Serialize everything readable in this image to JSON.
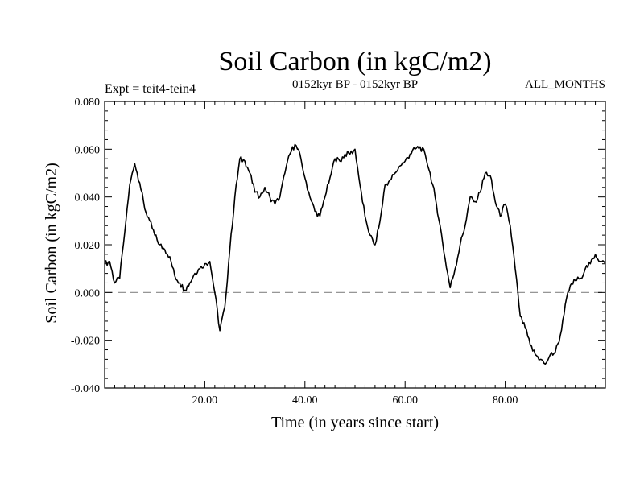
{
  "chart_data": {
    "type": "line",
    "title": "Soil Carbon (in kgC/m2)",
    "subtitle": "0152kyr BP - 0152kyr BP",
    "left_annotation": "Expt = teit4-tein4",
    "right_annotation": "ALL_MONTHS",
    "xlabel": "Time (in years since start)",
    "ylabel": "Soil Carbon (in kgC/m2)",
    "xlim": [
      0,
      100
    ],
    "ylim": [
      -0.04,
      0.08
    ],
    "xticks": [
      20,
      40,
      60,
      80
    ],
    "xtick_labels": [
      "20.00",
      "40.00",
      "60.00",
      "80.00"
    ],
    "yticks": [
      -0.04,
      -0.02,
      0.0,
      0.02,
      0.04,
      0.06,
      0.08
    ],
    "ytick_labels": [
      "-0.040",
      "-0.020",
      "0.000",
      "0.020",
      "0.040",
      "0.060",
      "0.080"
    ],
    "reference_line": {
      "y": 0.0,
      "style": "dashed",
      "color": "#888888"
    },
    "line_color": "#000000",
    "series": [
      {
        "name": "Soil Carbon",
        "x": [
          0,
          1,
          2,
          3,
          4,
          5,
          6,
          7,
          8,
          9,
          10,
          11,
          12,
          13,
          14,
          15,
          16,
          17,
          18,
          19,
          20,
          21,
          22,
          23,
          24,
          25,
          26,
          27,
          28,
          29,
          30,
          31,
          32,
          33,
          34,
          35,
          36,
          37,
          38,
          39,
          40,
          41,
          42,
          43,
          44,
          45,
          46,
          47,
          48,
          49,
          50,
          51,
          52,
          53,
          54,
          55,
          56,
          57,
          58,
          59,
          60,
          61,
          62,
          63,
          64,
          65,
          66,
          67,
          68,
          69,
          70,
          71,
          72,
          73,
          74,
          75,
          76,
          77,
          78,
          79,
          80,
          81,
          82,
          83,
          84,
          85,
          86,
          87,
          88,
          89,
          90,
          91,
          92,
          93,
          94,
          95,
          96,
          97,
          98,
          99,
          100
        ],
        "y": [
          0.012,
          0.013,
          0.004,
          0.006,
          0.025,
          0.045,
          0.054,
          0.046,
          0.035,
          0.03,
          0.024,
          0.02,
          0.018,
          0.015,
          0.007,
          0.004,
          0.001,
          0.004,
          0.008,
          0.01,
          0.012,
          0.013,
          0.0,
          -0.016,
          -0.006,
          0.018,
          0.04,
          0.056,
          0.055,
          0.05,
          0.042,
          0.04,
          0.044,
          0.04,
          0.037,
          0.04,
          0.05,
          0.058,
          0.062,
          0.058,
          0.048,
          0.04,
          0.034,
          0.032,
          0.04,
          0.048,
          0.056,
          0.055,
          0.058,
          0.058,
          0.06,
          0.045,
          0.032,
          0.024,
          0.02,
          0.03,
          0.045,
          0.047,
          0.05,
          0.053,
          0.055,
          0.058,
          0.06,
          0.061,
          0.058,
          0.05,
          0.04,
          0.028,
          0.014,
          0.002,
          0.01,
          0.02,
          0.028,
          0.04,
          0.038,
          0.042,
          0.05,
          0.049,
          0.038,
          0.032,
          0.037,
          0.028,
          0.01,
          -0.01,
          -0.015,
          -0.022,
          -0.026,
          -0.028,
          -0.03,
          -0.026,
          -0.025,
          -0.018,
          -0.005,
          0.003,
          0.005,
          0.006,
          0.01,
          0.012,
          0.016,
          0.013,
          0.012
        ]
      }
    ]
  }
}
